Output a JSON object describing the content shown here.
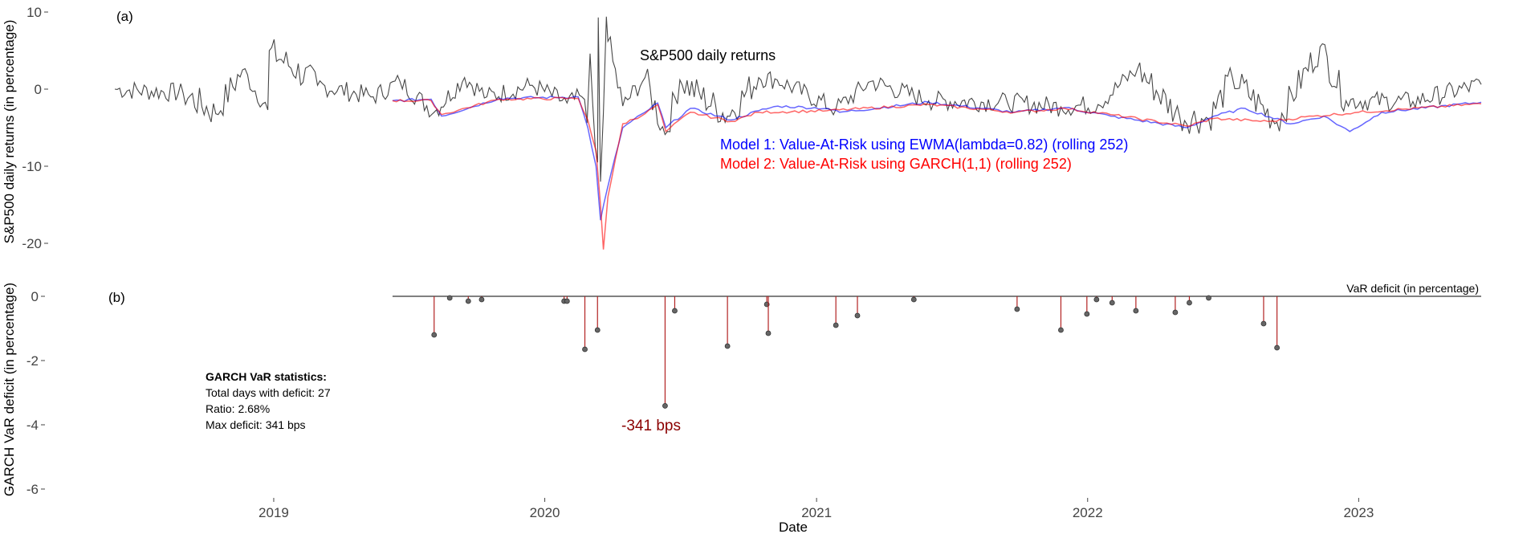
{
  "chart_data": [
    {
      "type": "line",
      "panel_label": "(a)",
      "ylabel": "S&P500 daily returns (in percentage)",
      "ylim": [
        -21,
        10.5
      ],
      "y_ticks": [
        10,
        0,
        -10,
        -20
      ],
      "y_tick_labels": [
        "10",
        "0",
        "-10",
        "-20"
      ],
      "grid": false,
      "annotations": [
        {
          "text": "S&P500 daily returns",
          "color": "#000000"
        },
        {
          "text": "Model 1: Value-At-Risk using EWMA(lambda=0.82) (rolling 252)",
          "color": "#0000ff"
        },
        {
          "text": "Model 2: Value-At-Risk using GARCH(1,1) (rolling 252)",
          "color": "#ff0000"
        }
      ],
      "x_range": [
        "2018-06-01",
        "2023-06-15"
      ],
      "series": [
        {
          "color": "#333333",
          "x": [
            "2018-06-01",
            "2018-09-01",
            "2018-10-15",
            "2018-11-20",
            "2018-12-24",
            "2018-12-26",
            "2019-03-01",
            "2019-05-15",
            "2019-06-20",
            "2019-08-05",
            "2019-09-15",
            "2019-10-15",
            "2019-12-15",
            "2020-01-31",
            "2020-02-20",
            "2020-02-27",
            "2020-03-02",
            "2020-03-09",
            "2020-03-12",
            "2020-03-13",
            "2020-03-16",
            "2020-03-24",
            "2020-03-26",
            "2020-04-15",
            "2020-05-15",
            "2020-06-11",
            "2020-07-01",
            "2020-09-03",
            "2020-10-15",
            "2020-11-09",
            "2021-01-27",
            "2021-03-15",
            "2021-06-01",
            "2021-09-15",
            "2021-11-26",
            "2022-01-15",
            "2022-03-09",
            "2022-05-05",
            "2022-06-13",
            "2022-07-15",
            "2022-09-13",
            "2022-11-10",
            "2022-12-15",
            "2023-03-15",
            "2023-06-15"
          ],
          "y": [
            0,
            -0.5,
            -3.2,
            2.5,
            -2.7,
            5,
            0.5,
            -1,
            1,
            -3,
            1.5,
            -1,
            0.5,
            -1.8,
            -1,
            -4.4,
            4.6,
            -7.6,
            -9.5,
            9.3,
            -12,
            9.4,
            6.2,
            -2.2,
            1.5,
            -5.9,
            1.2,
            -3.5,
            1.5,
            1.2,
            -2.6,
            1,
            -1.5,
            -1.7,
            -2.3,
            -2,
            2.6,
            -3.6,
            -3.9,
            1.5,
            -4.3,
            5.5,
            -1.5,
            -1.6,
            0.6
          ]
        },
        {
          "color": "#0000ff",
          "x": [
            "2019-06-10",
            "2019-08-01",
            "2019-08-15",
            "2019-11-01",
            "2020-02-15",
            "2020-02-28",
            "2020-03-10",
            "2020-03-16",
            "2020-03-25",
            "2020-04-15",
            "2020-05-15",
            "2020-06-01",
            "2020-06-12",
            "2020-07-15",
            "2020-09-08",
            "2020-10-15",
            "2020-11-10",
            "2021-01-15",
            "2021-02-01",
            "2021-06-01",
            "2021-09-25",
            "2021-12-01",
            "2022-02-01",
            "2022-05-15",
            "2022-06-20",
            "2022-08-01",
            "2022-10-01",
            "2022-11-15",
            "2022-12-20",
            "2023-02-01",
            "2023-06-15"
          ],
          "y": [
            -1.5,
            -1.3,
            -3.5,
            -1.2,
            -1,
            -5,
            -10,
            -17,
            -13,
            -5,
            -3,
            -1.8,
            -5,
            -2.5,
            -4,
            -2.8,
            -2.2,
            -2.5,
            -3,
            -1.7,
            -3,
            -2.4,
            -3.5,
            -5,
            -3.5,
            -2.5,
            -4.5,
            -3.5,
            -5.5,
            -3,
            -1.7
          ]
        },
        {
          "color": "#ff0000",
          "x": [
            "2019-06-10",
            "2019-08-01",
            "2019-08-15",
            "2019-11-01",
            "2020-02-15",
            "2020-02-28",
            "2020-03-10",
            "2020-03-16",
            "2020-03-20",
            "2020-03-26",
            "2020-04-15",
            "2020-05-15",
            "2020-06-01",
            "2020-06-12",
            "2020-07-15",
            "2020-09-08",
            "2020-10-15",
            "2021-01-15",
            "2021-06-01",
            "2021-09-25",
            "2021-12-01",
            "2022-02-01",
            "2022-05-15",
            "2022-06-20",
            "2022-09-01",
            "2022-11-01",
            "2023-01-01",
            "2023-06-15"
          ],
          "y": [
            -1.5,
            -1.5,
            -3.3,
            -1.3,
            -1.2,
            -4,
            -8,
            -15,
            -20.8,
            -14,
            -4.5,
            -3.2,
            -2,
            -5.5,
            -3,
            -4.2,
            -3,
            -2.8,
            -2,
            -3,
            -2.5,
            -3.3,
            -4.8,
            -3.8,
            -4.2,
            -3.5,
            -3,
            -1.9
          ]
        }
      ]
    },
    {
      "type": "bar",
      "panel_label": "(b)",
      "ylabel": "GARCH VaR deficit (in percentage)",
      "xlabel": "Date",
      "ylim": [
        -6.3,
        0.5
      ],
      "y_ticks": [
        0,
        -2,
        -4,
        -6
      ],
      "y_tick_labels": [
        "0",
        "-2",
        "-4",
        "-6"
      ],
      "x_ticks": [
        "2019-01-01",
        "2020-01-01",
        "2021-01-01",
        "2022-01-01",
        "2023-01-01"
      ],
      "x_tick_labels": [
        "2019",
        "2020",
        "2021",
        "2022",
        "2023"
      ],
      "x_range": [
        "2018-06-01",
        "2023-06-15"
      ],
      "baseline_start": "2019-06-10",
      "baseline_label": "VaR deficit (in percentage)",
      "bar_color": "#b22222",
      "point_color": "#666666",
      "peak_label": "-341 bps",
      "peak_label_color": "#8b0000",
      "x": [
        "2019-08-05",
        "2019-08-26",
        "2019-09-20",
        "2019-10-08",
        "2020-01-27",
        "2020-01-31",
        "2020-02-24",
        "2020-03-12",
        "2020-06-11",
        "2020-06-24",
        "2020-09-03",
        "2020-10-26",
        "2020-10-28",
        "2021-01-27",
        "2021-02-25",
        "2021-05-12",
        "2021-09-28",
        "2021-11-26",
        "2021-12-31",
        "2022-01-13",
        "2022-02-03",
        "2022-03-07",
        "2022-04-29",
        "2022-05-18",
        "2022-06-13",
        "2022-08-26",
        "2022-09-13"
      ],
      "values": [
        -1.2,
        -0.05,
        -0.15,
        -0.1,
        -0.15,
        -0.15,
        -1.65,
        -1.05,
        -3.41,
        -0.45,
        -1.55,
        -0.25,
        -1.15,
        -0.9,
        -0.6,
        -0.1,
        -0.4,
        -1.05,
        -0.55,
        -0.1,
        -0.2,
        -0.45,
        -0.5,
        -0.2,
        -0.05,
        -0.85,
        -1.6
      ],
      "stats": {
        "title": "GARCH VaR statistics:",
        "lines": [
          "Total days with deficit: 27",
          "Ratio: 2.68%",
          "Max deficit: 341 bps"
        ]
      }
    }
  ]
}
